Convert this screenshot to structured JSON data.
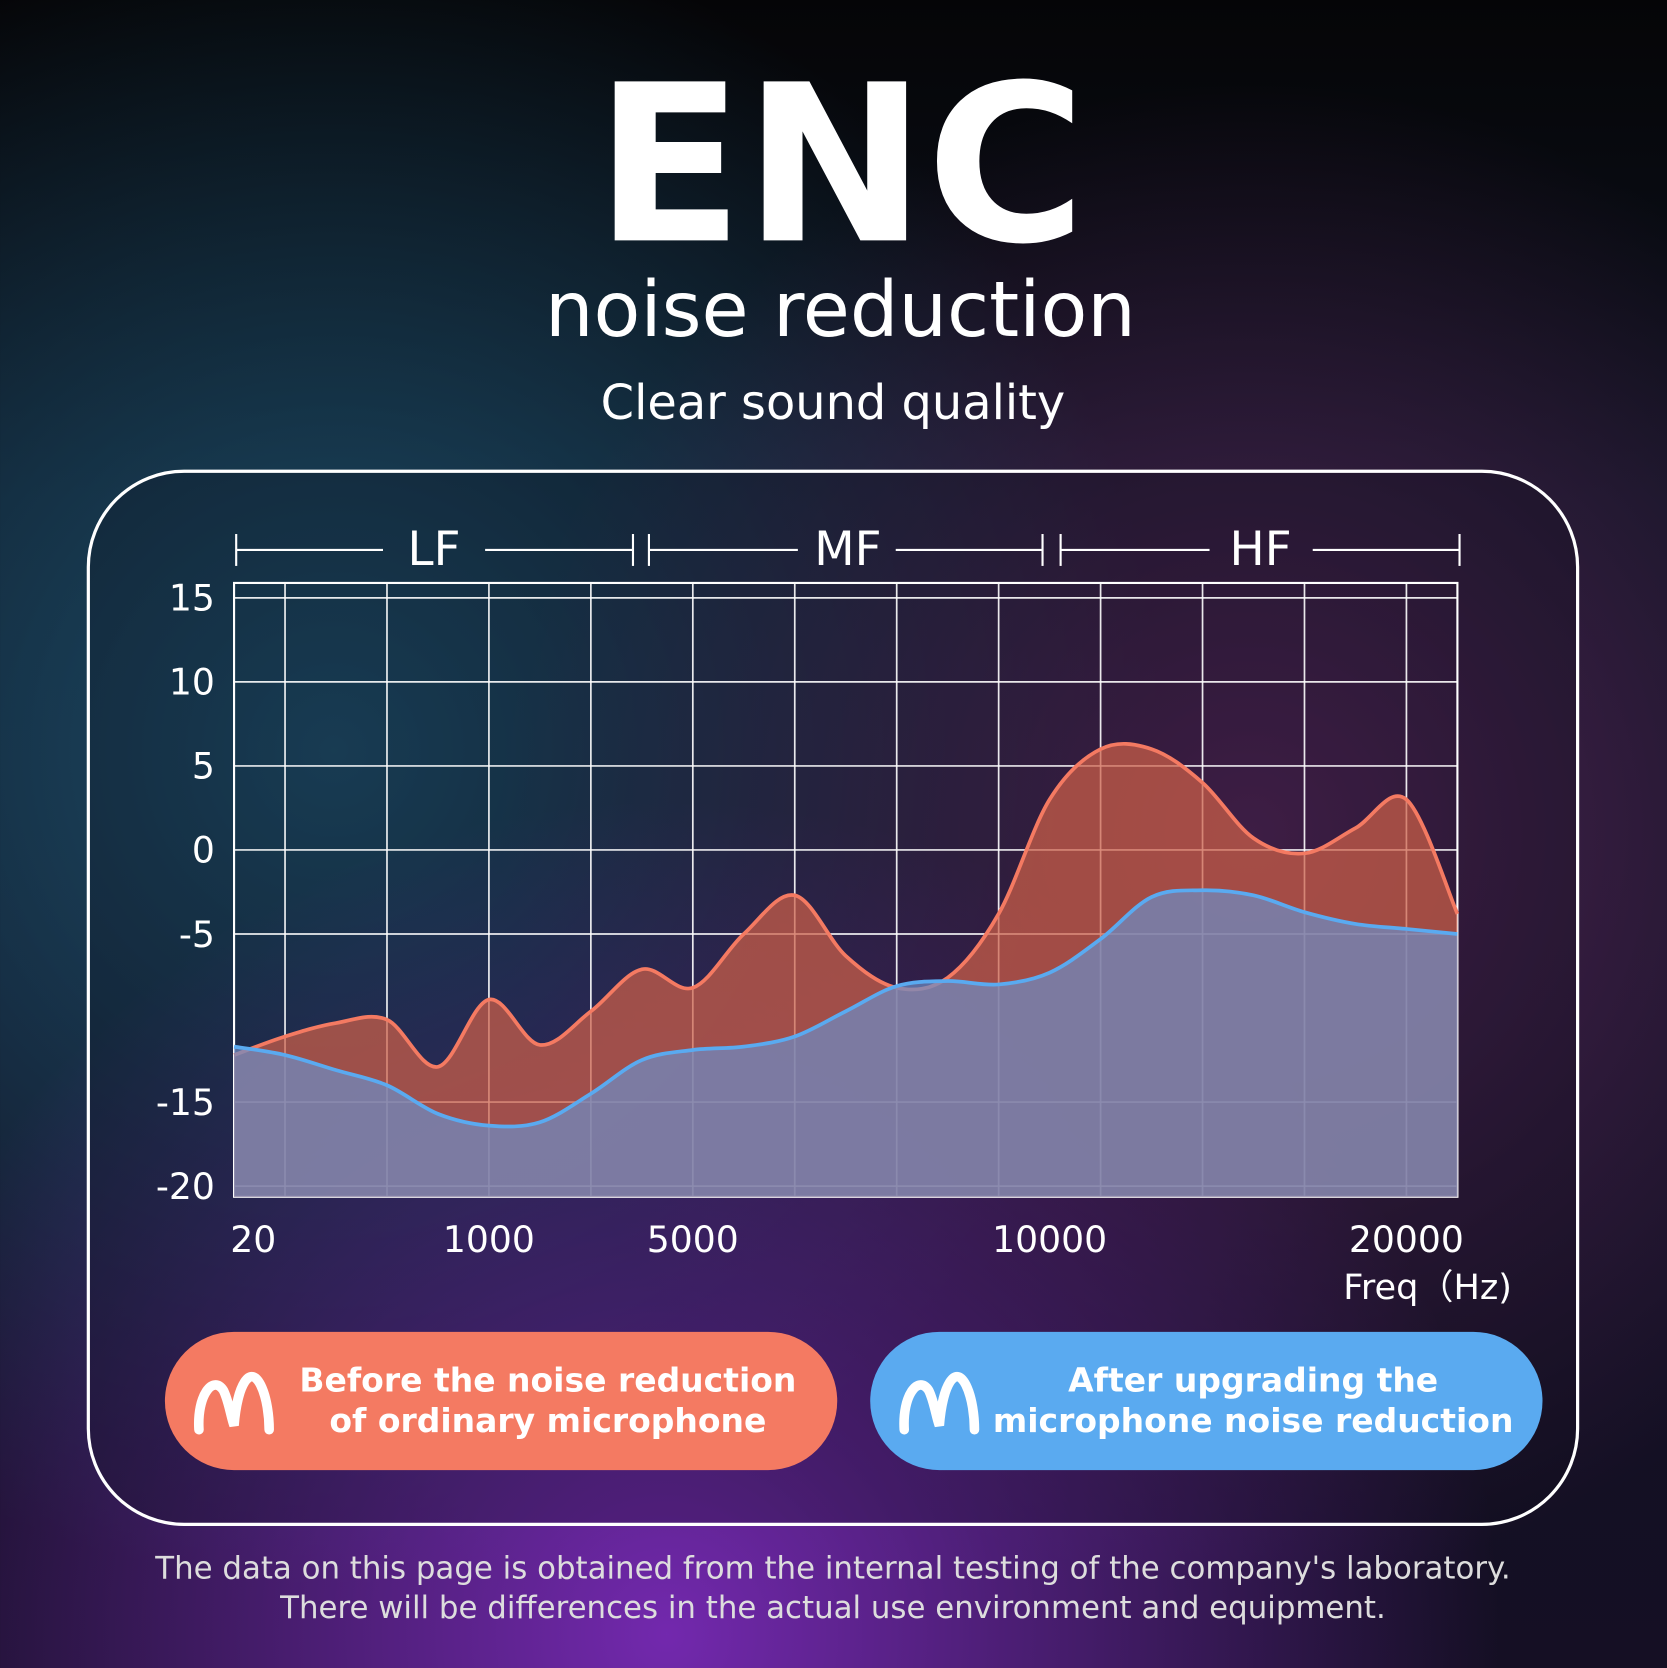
{
  "chart_data": {
    "type": "area",
    "title": "ENC",
    "subtitle": "noise reduction",
    "tagline": "Clear sound quality",
    "bands": [
      "LF",
      "MF",
      "HF"
    ],
    "categories": [
      "20",
      null,
      null,
      null,
      null,
      "1000",
      null,
      null,
      null,
      "5000",
      null,
      null,
      null,
      null,
      null,
      null,
      "10000",
      null,
      null,
      null,
      null,
      null,
      null,
      "20000",
      null
    ],
    "x_label": "Freq（Hz)",
    "ylim": [
      -20,
      15
    ],
    "yticks": [
      15,
      10,
      5,
      0,
      -5,
      -15,
      -20
    ],
    "grid": true,
    "series": [
      {
        "name": "Before the noise reduction of ordinary microphone",
        "color": "#f47a62",
        "values": [
          -12.2,
          -11.1,
          -10.3,
          -10.1,
          -12.9,
          -8.9,
          -11.6,
          -9.6,
          -7.1,
          -8.2,
          -5,
          -2.7,
          -6.3,
          -8.2,
          -7.6,
          -3.8,
          3,
          6,
          6,
          4,
          0.7,
          -0.2,
          1.3,
          3,
          -3.8
        ]
      },
      {
        "name": "After upgrading the microphone noise reduction",
        "color": "#5aaaf0",
        "values": [
          -11.7,
          -12.2,
          -13.1,
          -14,
          -15.7,
          -16.4,
          -16.2,
          -14.5,
          -12.5,
          -11.9,
          -11.7,
          -11.1,
          -9.6,
          -8.1,
          -7.8,
          -8,
          -7.3,
          -5.3,
          -2.8,
          -2.4,
          -2.7,
          -3.7,
          -4.4,
          -4.7,
          -5
        ]
      }
    ],
    "notes": [
      "The data on this page is obtained from the internal testing of the company's laboratory.",
      "There will be differences in the actual use environment and equipment."
    ]
  }
}
